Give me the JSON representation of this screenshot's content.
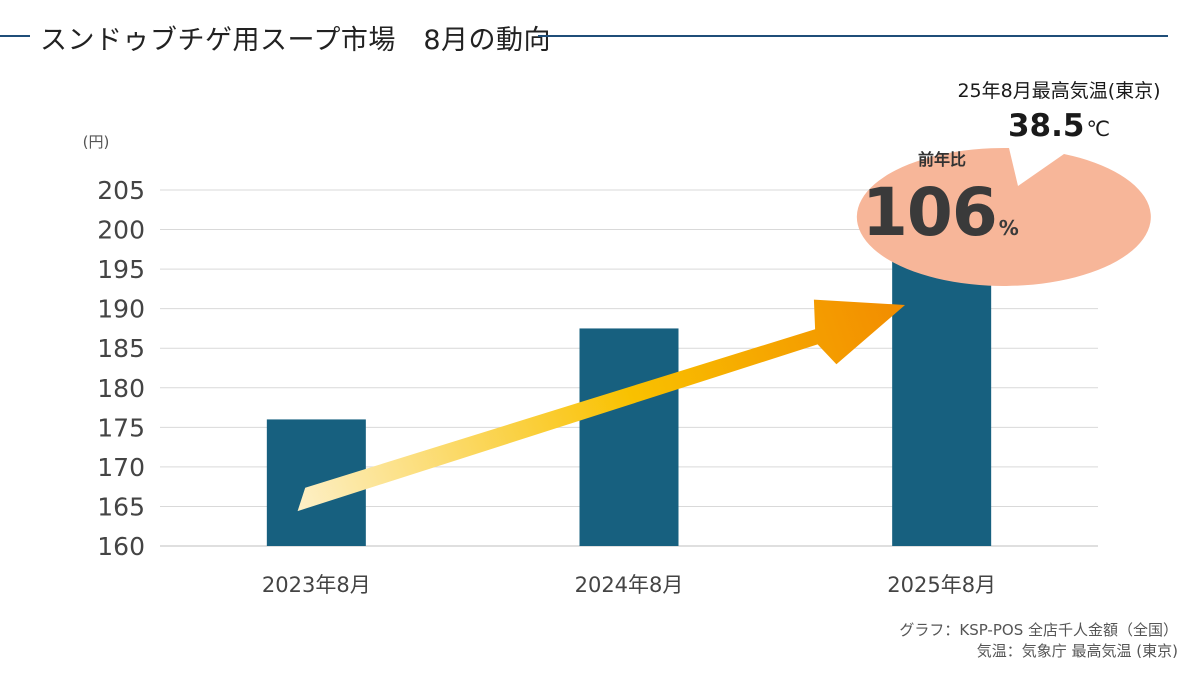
{
  "page_title": "スンドゥブチゲ用スープ市場　8月の動向",
  "chart_data": {
    "type": "bar",
    "title": "",
    "ylabel": "(円)",
    "xlabel": "",
    "categories": [
      "2023年8月",
      "2024年8月",
      "2025年8月"
    ],
    "values": [
      176,
      187.5,
      199
    ],
    "ylim": [
      160,
      205
    ],
    "yticks": [
      160,
      165,
      170,
      175,
      180,
      185,
      190,
      195,
      200,
      205
    ],
    "grid": true,
    "bar_color": "#17607f"
  },
  "annotations": {
    "yoy_label": "前年比",
    "yoy_value": "106",
    "yoy_unit": "%",
    "bubble_line1": "25年8月最高気温(東京)",
    "bubble_value": "38.5",
    "bubble_unit": "℃",
    "bubble_color": "#f7b699",
    "arrow_gradient": [
      "#fdf0c8",
      "#f9c100",
      "#f28c00"
    ]
  },
  "source": {
    "line1": "グラフ：KSP-POS 全店千人金額（全国）",
    "line2": "気温：気象庁 最高気温 (東京)"
  }
}
